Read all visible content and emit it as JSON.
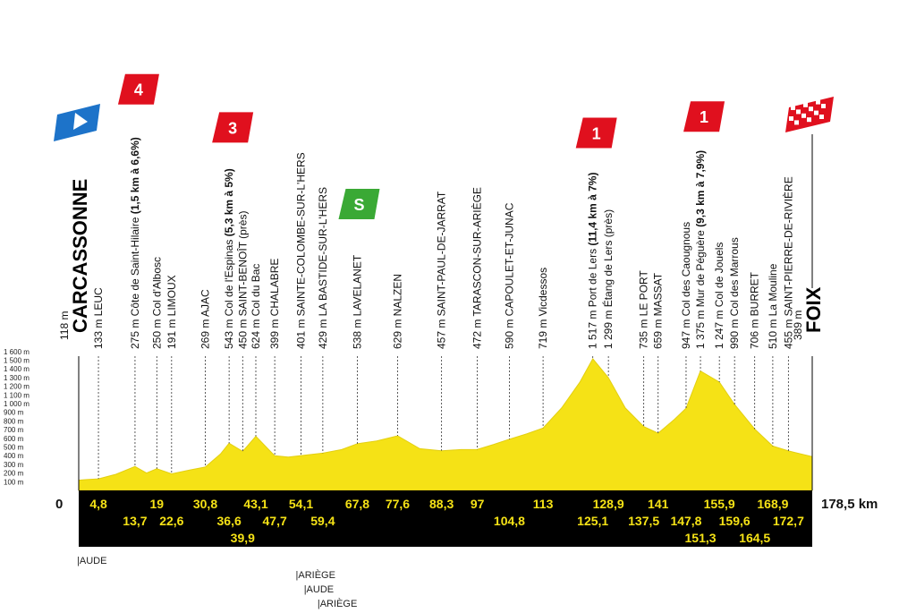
{
  "chart_data": {
    "type": "area",
    "ylim": [
      0,
      1600
    ],
    "xlim": [
      0,
      178.5
    ],
    "y_ticks": [
      "100 m",
      "200 m",
      "300 m",
      "400 m",
      "500 m",
      "600 m",
      "700 m",
      "800 m",
      "900 m",
      "1 000 m",
      "1 100 m",
      "1 200 m",
      "1 300 m",
      "1 400 m",
      "1 500 m",
      "1 600 m"
    ],
    "start_label": "0",
    "end_label": "178,5 km",
    "colors": {
      "profile_fill": "#f5e216",
      "profile_edge": "#e3cf10",
      "band": "#000000",
      "km_text": "#f5e216",
      "climb_badge": "#e0101e",
      "sprint_badge": "#3aa935",
      "start_flag": "#1d73c9"
    },
    "profile": [
      {
        "km": 0,
        "alt": 118
      },
      {
        "km": 2,
        "alt": 125
      },
      {
        "km": 4.8,
        "alt": 133
      },
      {
        "km": 9,
        "alt": 185
      },
      {
        "km": 13.7,
        "alt": 275
      },
      {
        "km": 16.5,
        "alt": 200
      },
      {
        "km": 19,
        "alt": 250
      },
      {
        "km": 22.6,
        "alt": 191
      },
      {
        "km": 27,
        "alt": 235
      },
      {
        "km": 30.8,
        "alt": 269
      },
      {
        "km": 34.5,
        "alt": 420
      },
      {
        "km": 36.6,
        "alt": 543
      },
      {
        "km": 39.9,
        "alt": 450
      },
      {
        "km": 43.1,
        "alt": 624
      },
      {
        "km": 47.7,
        "alt": 399
      },
      {
        "km": 51,
        "alt": 385
      },
      {
        "km": 54.1,
        "alt": 401
      },
      {
        "km": 59.4,
        "alt": 429
      },
      {
        "km": 64,
        "alt": 470
      },
      {
        "km": 67.8,
        "alt": 538
      },
      {
        "km": 72.5,
        "alt": 570
      },
      {
        "km": 77.6,
        "alt": 629
      },
      {
        "km": 83,
        "alt": 480
      },
      {
        "km": 88.3,
        "alt": 457
      },
      {
        "km": 93,
        "alt": 470
      },
      {
        "km": 97,
        "alt": 472
      },
      {
        "km": 101,
        "alt": 530
      },
      {
        "km": 104.8,
        "alt": 590
      },
      {
        "km": 109,
        "alt": 650
      },
      {
        "km": 113,
        "alt": 719
      },
      {
        "km": 117.5,
        "alt": 950
      },
      {
        "km": 122,
        "alt": 1250
      },
      {
        "km": 125.1,
        "alt": 1517
      },
      {
        "km": 128.9,
        "alt": 1299
      },
      {
        "km": 133,
        "alt": 950
      },
      {
        "km": 137.5,
        "alt": 735
      },
      {
        "km": 141,
        "alt": 659
      },
      {
        "km": 145,
        "alt": 820
      },
      {
        "km": 147.8,
        "alt": 947
      },
      {
        "km": 151.3,
        "alt": 1375
      },
      {
        "km": 155.9,
        "alt": 1247
      },
      {
        "km": 159.6,
        "alt": 990
      },
      {
        "km": 164.5,
        "alt": 706
      },
      {
        "km": 168.9,
        "alt": 510
      },
      {
        "km": 172.7,
        "alt": 455
      },
      {
        "km": 178.5,
        "alt": 389
      }
    ],
    "waypoints": [
      {
        "km": 0,
        "alt": "118 m",
        "name": "CARCASSONNE",
        "kind": "start"
      },
      {
        "km": 4.8,
        "alt": "133 m",
        "name": "LEUC"
      },
      {
        "km": 13.7,
        "alt": "275 m",
        "name": "Côte de Saint-Hilaire",
        "detail": " (1,5 km à 6,6%)",
        "climb": "4"
      },
      {
        "km": 19,
        "alt": "250 m",
        "name": "Col d'Albosc"
      },
      {
        "km": 22.6,
        "alt": "191 m",
        "name": "LIMOUX"
      },
      {
        "km": 30.8,
        "alt": "269 m",
        "name": "AJAC"
      },
      {
        "km": 36.6,
        "alt": "543 m",
        "name": "Col de l'Espinas",
        "detail": " (5,3 km à 5%)",
        "climb": "3"
      },
      {
        "km": 39.9,
        "alt": "450 m",
        "name": "SAINT-BENOÎT (près)"
      },
      {
        "km": 43.1,
        "alt": "624 m",
        "name": "Col du Bac"
      },
      {
        "km": 47.7,
        "alt": "399 m",
        "name": "CHALABRE"
      },
      {
        "km": 54.1,
        "alt": "401 m",
        "name": "SAINTE-COLOMBE-SUR-L'HERS"
      },
      {
        "km": 59.4,
        "alt": "429 m",
        "name": "LA BASTIDE-SUR-L'HERS"
      },
      {
        "km": 67.8,
        "alt": "538 m",
        "name": "LAVELANET",
        "sprint": "S"
      },
      {
        "km": 77.6,
        "alt": "629 m",
        "name": "NALZEN"
      },
      {
        "km": 88.3,
        "alt": "457 m",
        "name": "SAINT-PAUL-DE-JARRAT"
      },
      {
        "km": 97,
        "alt": "472 m",
        "name": "TARASCON-SUR-ARIÈGE"
      },
      {
        "km": 104.8,
        "alt": "590 m",
        "name": "CAPOULET-ET-JUNAC"
      },
      {
        "km": 113,
        "alt": "719 m",
        "name": "Vicdessos"
      },
      {
        "km": 125.1,
        "alt": "1 517 m",
        "name": "Port de Lers",
        "detail": " (11,4 km à 7%)",
        "climb": "1"
      },
      {
        "km": 128.9,
        "alt": "1 299 m",
        "name": "Étang de Lers (près)"
      },
      {
        "km": 137.5,
        "alt": "735 m",
        "name": "LE PORT"
      },
      {
        "km": 141,
        "alt": "659 m",
        "name": "MASSAT"
      },
      {
        "km": 147.8,
        "alt": "947 m",
        "name": "Col des Caougnous"
      },
      {
        "km": 151.3,
        "alt": "1 375 m",
        "name": "Mur de Péguère",
        "detail": " (9,3 km à 7,9%)",
        "climb": "1"
      },
      {
        "km": 155.9,
        "alt": "1 247 m",
        "name": "Col de Jouels"
      },
      {
        "km": 159.6,
        "alt": "990 m",
        "name": "Col des Marrous"
      },
      {
        "km": 164.5,
        "alt": "706 m",
        "name": "BURRET"
      },
      {
        "km": 168.9,
        "alt": "510 m",
        "name": "La Mouline"
      },
      {
        "km": 172.7,
        "alt": "455 m",
        "name": "SAINT-PIERRE-DE-RIVIÈRE"
      },
      {
        "km": 178.5,
        "alt": "389 m",
        "name": "FOIX",
        "kind": "finish"
      }
    ],
    "km_row1": [
      "4,8",
      "19",
      "30,8",
      "43,1",
      "54,1",
      "67,8",
      "77,6",
      "88,3",
      "97",
      "113",
      "128,9",
      "141",
      "155,9",
      "168,9"
    ],
    "km_row2": [
      "13,7",
      "22,6",
      "36,6",
      "47,7",
      "59,4",
      "104,8",
      "125,1",
      "137,5",
      "147,8",
      "159,6",
      "172,7"
    ],
    "km_row3": [
      "39,9",
      "151,3",
      "164,5"
    ],
    "departments": [
      {
        "label": "AUDE",
        "km": 0
      },
      {
        "label": "ARIÈGE",
        "km": 54.1
      },
      {
        "label": "AUDE",
        "km": 56.1
      },
      {
        "label": "ARIÈGE",
        "km": 59.4
      }
    ]
  }
}
